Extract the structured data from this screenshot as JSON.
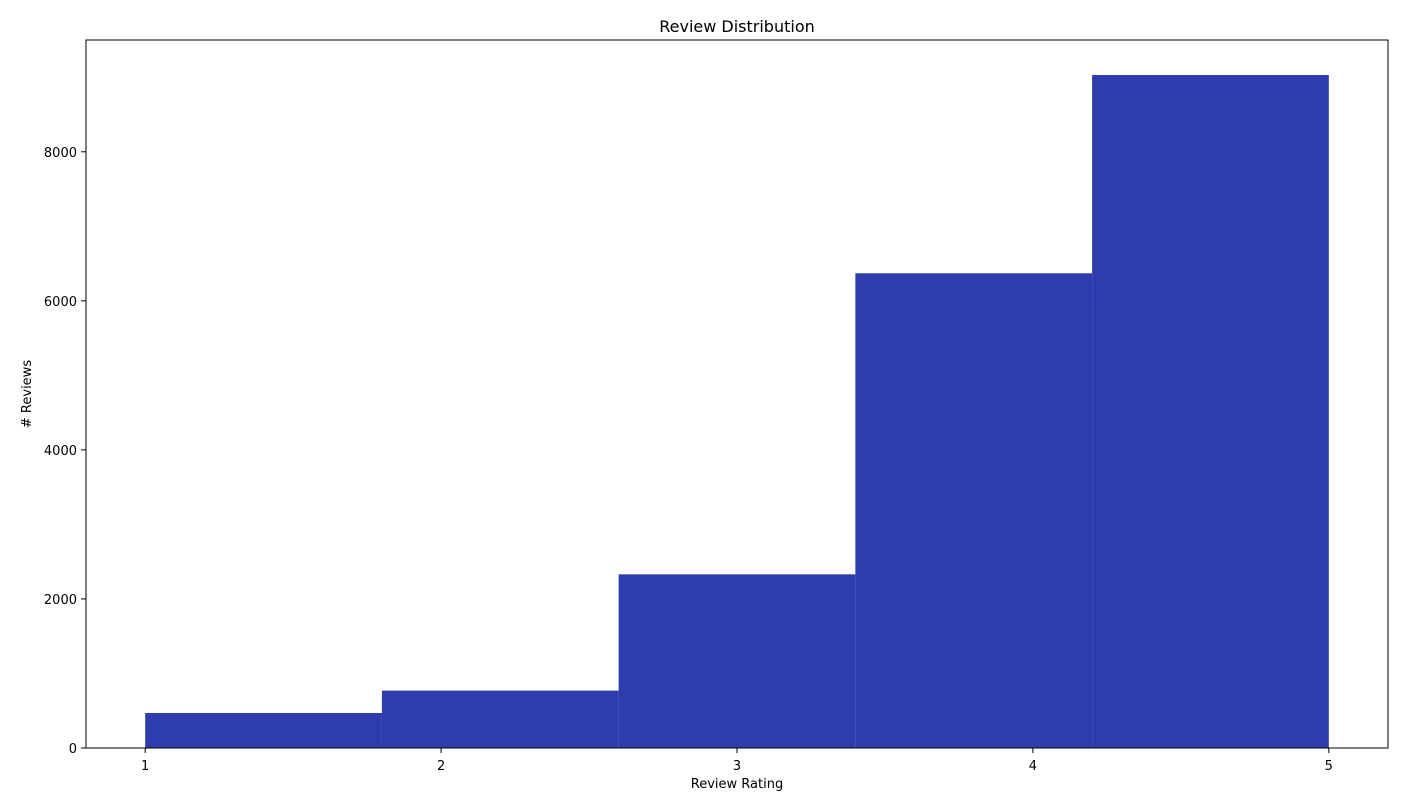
{
  "chart_data": {
    "type": "bar",
    "title": "Review Distribution",
    "xlabel": "Review Rating",
    "ylabel": "# Reviews",
    "bins": [
      {
        "start": 1.0,
        "end": 1.8,
        "value": 470
      },
      {
        "start": 1.8,
        "end": 2.6,
        "value": 770
      },
      {
        "start": 2.6,
        "end": 3.4,
        "value": 2330
      },
      {
        "start": 3.4,
        "end": 4.2,
        "value": 6370
      },
      {
        "start": 4.2,
        "end": 5.0,
        "value": 9030
      }
    ],
    "xlim": [
      0.8,
      5.2
    ],
    "ylim": [
      0,
      9500
    ],
    "xticks": [
      1,
      2,
      3,
      4,
      5
    ],
    "yticks": [
      0,
      2000,
      4000,
      6000,
      8000
    ],
    "grid": false,
    "bar_color": "#2f3cad"
  }
}
